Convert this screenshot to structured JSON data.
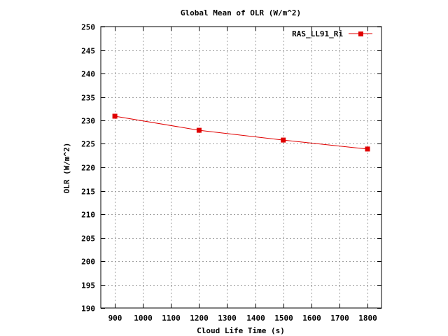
{
  "chart_data": {
    "type": "line",
    "title": "Global Mean of OLR (W/m^2)",
    "xlabel": "Cloud Life Time (s)",
    "ylabel": "OLR (W/m^2)",
    "xlim": [
      850,
      1850
    ],
    "ylim": [
      190,
      250
    ],
    "xticks": [
      900,
      1000,
      1100,
      1200,
      1300,
      1400,
      1500,
      1600,
      1700,
      1800
    ],
    "yticks": [
      190,
      195,
      200,
      205,
      210,
      215,
      220,
      225,
      230,
      235,
      240,
      245,
      250
    ],
    "grid": true,
    "legend_position": "top-right",
    "series": [
      {
        "name": "RAS_LL91_Ri",
        "color": "#e00000",
        "marker": "square",
        "x": [
          900,
          1200,
          1500,
          1800
        ],
        "y": [
          230.9,
          227.9,
          225.8,
          223.9
        ]
      }
    ]
  }
}
